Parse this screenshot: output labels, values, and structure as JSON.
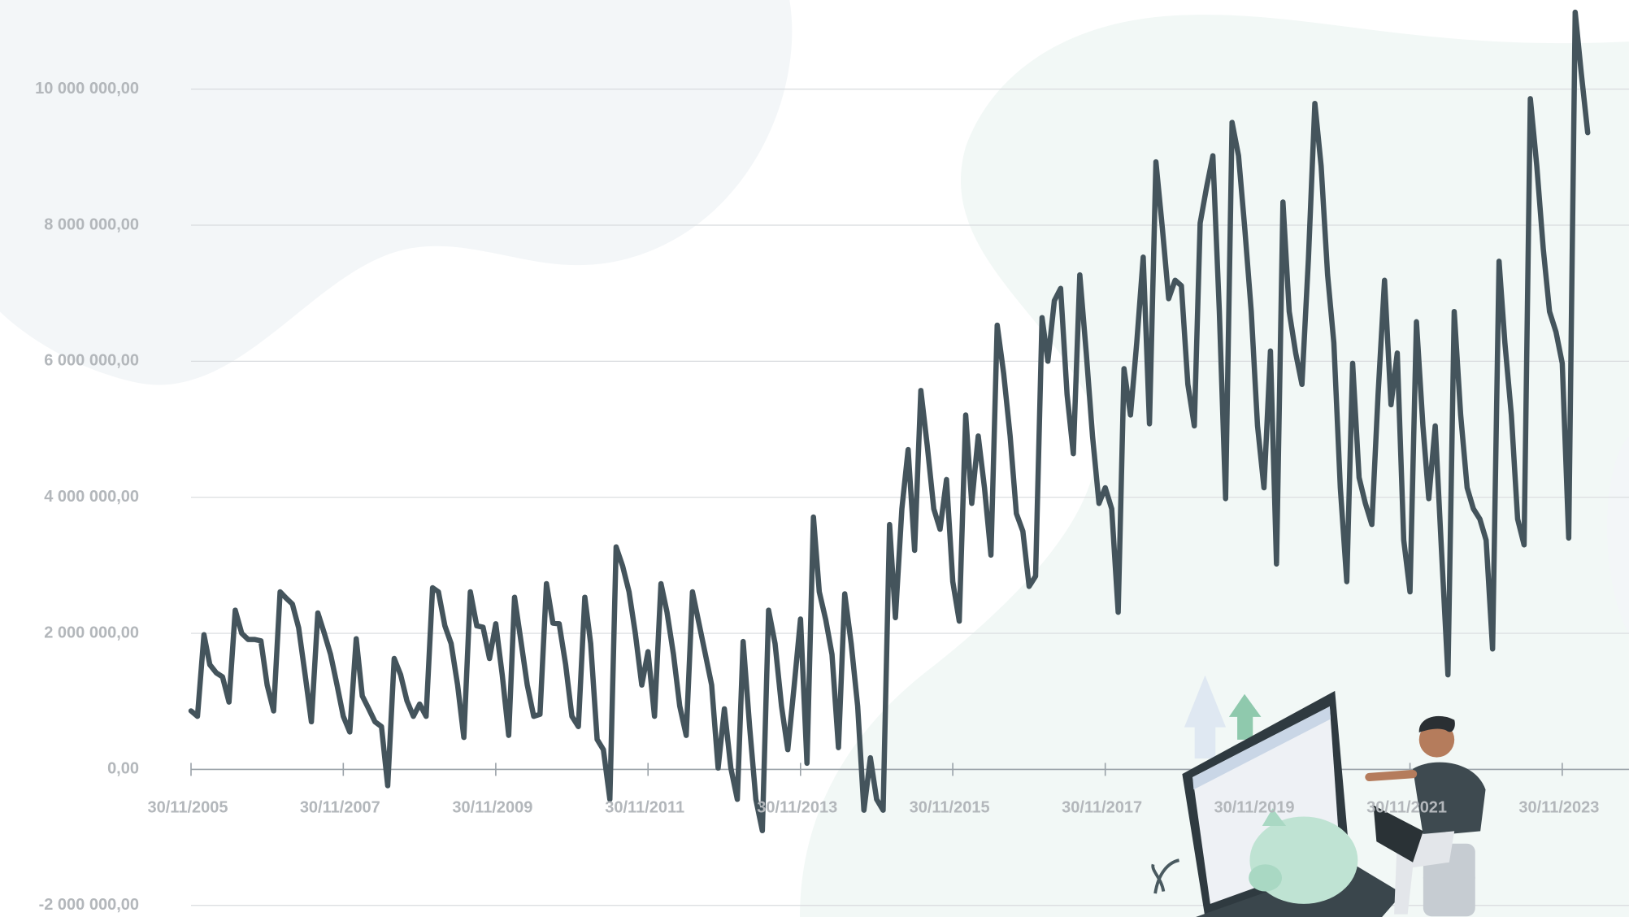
{
  "chart_data": {
    "type": "line",
    "color": "#44545c",
    "grid": true,
    "xlim": [
      "2005-11-30",
      "2024-10-15"
    ],
    "ylim": [
      -2170000,
      11310000
    ],
    "xticks": [
      {
        "value": "2005-11-30",
        "label": "30/11/2005"
      },
      {
        "value": "2007-11-30",
        "label": "30/11/2007"
      },
      {
        "value": "2009-11-30",
        "label": "30/11/2009"
      },
      {
        "value": "2011-11-30",
        "label": "30/11/2011"
      },
      {
        "value": "2013-11-30",
        "label": "30/11/2013"
      },
      {
        "value": "2015-11-30",
        "label": "30/11/2015"
      },
      {
        "value": "2017-11-30",
        "label": "30/11/2017"
      },
      {
        "value": "2019-11-30",
        "label": "30/11/2019"
      },
      {
        "value": "2021-11-30",
        "label": "30/11/2021"
      },
      {
        "value": "2023-11-30",
        "label": "30/11/2023"
      }
    ],
    "yticks": [
      {
        "value": -2000000,
        "label": "-2 000 000,00"
      },
      {
        "value": 0,
        "label": "0,00"
      },
      {
        "value": 2000000,
        "label": "2 000 000,00"
      },
      {
        "value": 4000000,
        "label": "4 000 000,00"
      },
      {
        "value": 6000000,
        "label": "6 000 000,00"
      },
      {
        "value": 8000000,
        "label": "8 000 000,00"
      },
      {
        "value": 10000000,
        "label": "10 000 000,00"
      }
    ],
    "x": [
      "2005-11",
      "2005-12",
      "2006-01",
      "2006-02",
      "2006-03",
      "2006-04",
      "2006-05",
      "2006-06",
      "2006-07",
      "2006-08",
      "2006-09",
      "2006-10",
      "2006-11",
      "2006-12",
      "2007-01",
      "2007-02",
      "2007-03",
      "2007-04",
      "2007-05",
      "2007-06",
      "2007-07",
      "2007-08",
      "2007-09",
      "2007-10",
      "2007-11",
      "2007-12",
      "2008-01",
      "2008-02",
      "2008-03",
      "2008-04",
      "2008-05",
      "2008-06",
      "2008-07",
      "2008-08",
      "2008-09",
      "2008-10",
      "2008-11",
      "2008-12",
      "2009-01",
      "2009-02",
      "2009-03",
      "2009-04",
      "2009-05",
      "2009-06",
      "2009-07",
      "2009-08",
      "2009-09",
      "2009-10",
      "2009-11",
      "2009-12",
      "2010-01",
      "2010-02",
      "2010-03",
      "2010-04",
      "2010-05",
      "2010-06",
      "2010-07",
      "2010-08",
      "2010-09",
      "2010-10",
      "2010-11",
      "2010-12",
      "2011-01",
      "2011-02",
      "2011-03",
      "2011-04",
      "2011-05",
      "2011-06",
      "2011-07",
      "2011-08",
      "2011-09",
      "2011-10",
      "2011-11",
      "2011-12",
      "2012-01",
      "2012-02",
      "2012-03",
      "2012-04",
      "2012-05",
      "2012-06",
      "2012-07",
      "2012-08",
      "2012-09",
      "2012-10",
      "2012-11",
      "2012-12",
      "2013-01",
      "2013-02",
      "2013-03",
      "2013-04",
      "2013-05",
      "2013-06",
      "2013-07",
      "2013-08",
      "2013-09",
      "2013-10",
      "2013-11",
      "2013-12",
      "2014-01",
      "2014-02",
      "2014-03",
      "2014-04",
      "2014-05",
      "2014-06",
      "2014-07",
      "2014-08",
      "2014-09",
      "2014-10",
      "2014-11",
      "2014-12",
      "2015-01",
      "2015-02",
      "2015-03",
      "2015-04",
      "2015-05",
      "2015-06",
      "2015-07",
      "2015-08",
      "2015-09",
      "2015-10",
      "2015-11",
      "2015-12",
      "2016-01",
      "2016-02",
      "2016-03",
      "2016-04",
      "2016-05",
      "2016-06",
      "2016-07",
      "2016-08",
      "2016-09",
      "2016-10",
      "2016-11",
      "2016-12",
      "2017-01",
      "2017-02",
      "2017-03",
      "2017-04",
      "2017-05",
      "2017-06",
      "2017-07",
      "2017-08",
      "2017-09",
      "2017-10",
      "2017-11",
      "2017-12",
      "2018-01",
      "2018-02",
      "2018-03",
      "2018-04",
      "2018-05",
      "2018-06",
      "2018-07",
      "2018-08",
      "2018-09",
      "2018-10",
      "2018-11",
      "2018-12",
      "2019-01",
      "2019-02",
      "2019-03",
      "2019-04",
      "2019-05",
      "2019-06",
      "2019-07",
      "2019-08",
      "2019-09",
      "2019-10",
      "2019-11",
      "2019-12",
      "2020-01",
      "2020-02",
      "2020-03",
      "2020-04",
      "2020-05",
      "2020-06",
      "2020-07",
      "2020-08",
      "2020-09",
      "2020-10",
      "2020-11",
      "2020-12",
      "2021-01",
      "2021-02",
      "2021-03",
      "2021-04",
      "2021-05",
      "2021-06",
      "2021-07",
      "2021-08",
      "2021-09",
      "2021-10",
      "2021-11",
      "2021-12",
      "2022-01",
      "2022-02",
      "2022-03",
      "2022-04",
      "2022-05",
      "2022-06",
      "2022-07",
      "2022-08",
      "2022-09",
      "2022-10",
      "2022-11",
      "2022-12",
      "2023-01",
      "2023-02",
      "2023-03",
      "2023-04",
      "2023-05",
      "2023-06",
      "2023-07",
      "2023-08",
      "2023-09",
      "2023-10",
      "2023-11",
      "2023-12",
      "2024-01",
      "2024-02",
      "2024-03"
    ],
    "values": [
      860000,
      780000,
      1980000,
      1540000,
      1420000,
      1360000,
      990000,
      2340000,
      2000000,
      1910000,
      1910000,
      1890000,
      1240000,
      860000,
      2610000,
      2520000,
      2430000,
      2080000,
      1390000,
      700000,
      2300000,
      2000000,
      1690000,
      1240000,
      780000,
      550000,
      1920000,
      1080000,
      890000,
      700000,
      630000,
      -240000,
      1630000,
      1390000,
      1010000,
      780000,
      960000,
      780000,
      2670000,
      2610000,
      2110000,
      1850000,
      1240000,
      470000,
      2610000,
      2110000,
      2090000,
      1630000,
      2140000,
      1390000,
      500000,
      2530000,
      1880000,
      1240000,
      780000,
      810000,
      2730000,
      2150000,
      2140000,
      1540000,
      780000,
      630000,
      2530000,
      1850000,
      440000,
      290000,
      -440000,
      3270000,
      2990000,
      2610000,
      2000000,
      1240000,
      1730000,
      780000,
      2730000,
      2310000,
      1690000,
      930000,
      500000,
      2610000,
      2150000,
      1690000,
      1240000,
      20000,
      890000,
      20000,
      -440000,
      1880000,
      630000,
      -440000,
      -900000,
      2340000,
      1850000,
      930000,
      290000,
      1240000,
      2210000,
      90000,
      3710000,
      2610000,
      2200000,
      1690000,
      320000,
      2580000,
      1850000,
      930000,
      -600000,
      170000,
      -440000,
      -600000,
      3600000,
      2230000,
      3830000,
      4700000,
      3220000,
      5570000,
      4750000,
      3830000,
      3530000,
      4260000,
      2760000,
      2180000,
      5210000,
      3910000,
      4900000,
      4140000,
      3150000,
      6530000,
      5820000,
      4900000,
      3760000,
      3500000,
      2690000,
      2840000,
      6640000,
      6000000,
      6890000,
      7070000,
      5510000,
      4640000,
      7270000,
      6120000,
      4900000,
      3910000,
      4140000,
      3830000,
      2310000,
      5890000,
      5210000,
      6270000,
      7530000,
      5080000,
      8930000,
      7950000,
      6920000,
      7190000,
      7110000,
      5660000,
      5050000,
      8030000,
      8560000,
      9020000,
      6730000,
      3980000,
      9510000,
      9020000,
      7950000,
      6730000,
      5050000,
      4140000,
      6150000,
      3020000,
      8340000,
      6730000,
      6120000,
      5660000,
      7500000,
      9790000,
      8870000,
      7270000,
      6270000,
      4140000,
      2760000,
      5970000,
      4290000,
      3910000,
      3600000,
      5510000,
      7190000,
      5360000,
      6120000,
      3370000,
      2610000,
      6580000,
      5050000,
      3980000,
      5050000,
      3220000,
      1390000,
      6730000,
      5210000,
      4140000,
      3830000,
      3680000,
      3370000,
      1770000,
      7470000,
      6270000,
      5210000,
      3680000,
      3300000,
      9860000,
      8870000,
      7650000,
      6730000,
      6430000,
      5970000,
      3400000,
      11130000,
      10240000,
      9360000
    ]
  }
}
